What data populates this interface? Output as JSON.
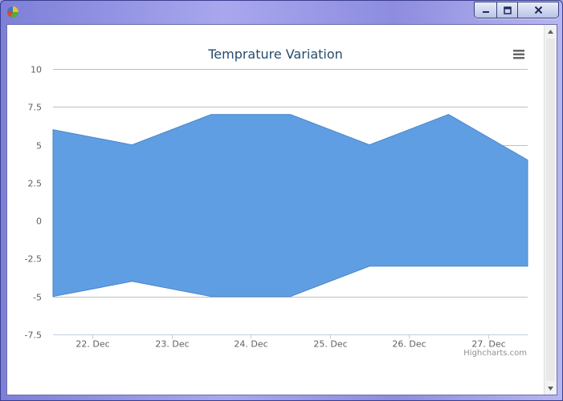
{
  "window": {
    "app_icon": "pie-chart-icon",
    "controls": {
      "minimize_icon": "minimize-icon",
      "maximize_icon": "maximize-icon",
      "close_icon": "close-icon"
    }
  },
  "chart_menu_icon": "hamburger-menu-icon",
  "credits": "Highcharts.com",
  "colors": {
    "area": "#5f9ee3",
    "area_line": "#4a86c9",
    "grid": "#c0c0c0",
    "title": "#274b6d"
  },
  "chart_data": {
    "type": "area",
    "subtype": "arearange",
    "title": "Temprature Variation",
    "xlabel": "",
    "ylabel": "",
    "categories": [
      "22. Dec",
      "23. Dec",
      "24. Dec",
      "25. Dec",
      "26. Dec",
      "27. Dec"
    ],
    "x": [
      21.5,
      22.5,
      23.5,
      24.5,
      25.5,
      26.5,
      27.5
    ],
    "series": [
      {
        "low": [
          -5,
          -4,
          -5,
          -5,
          -3,
          -3,
          -3
        ],
        "high": [
          6,
          5,
          7,
          7,
          5,
          7,
          4
        ]
      }
    ],
    "ylim": [
      -7.5,
      10
    ],
    "yticks": [
      "10",
      "7.5",
      "5",
      "2.5",
      "0",
      "-2.5",
      "-5",
      "-7.5"
    ],
    "grid": true,
    "legend": "none"
  }
}
